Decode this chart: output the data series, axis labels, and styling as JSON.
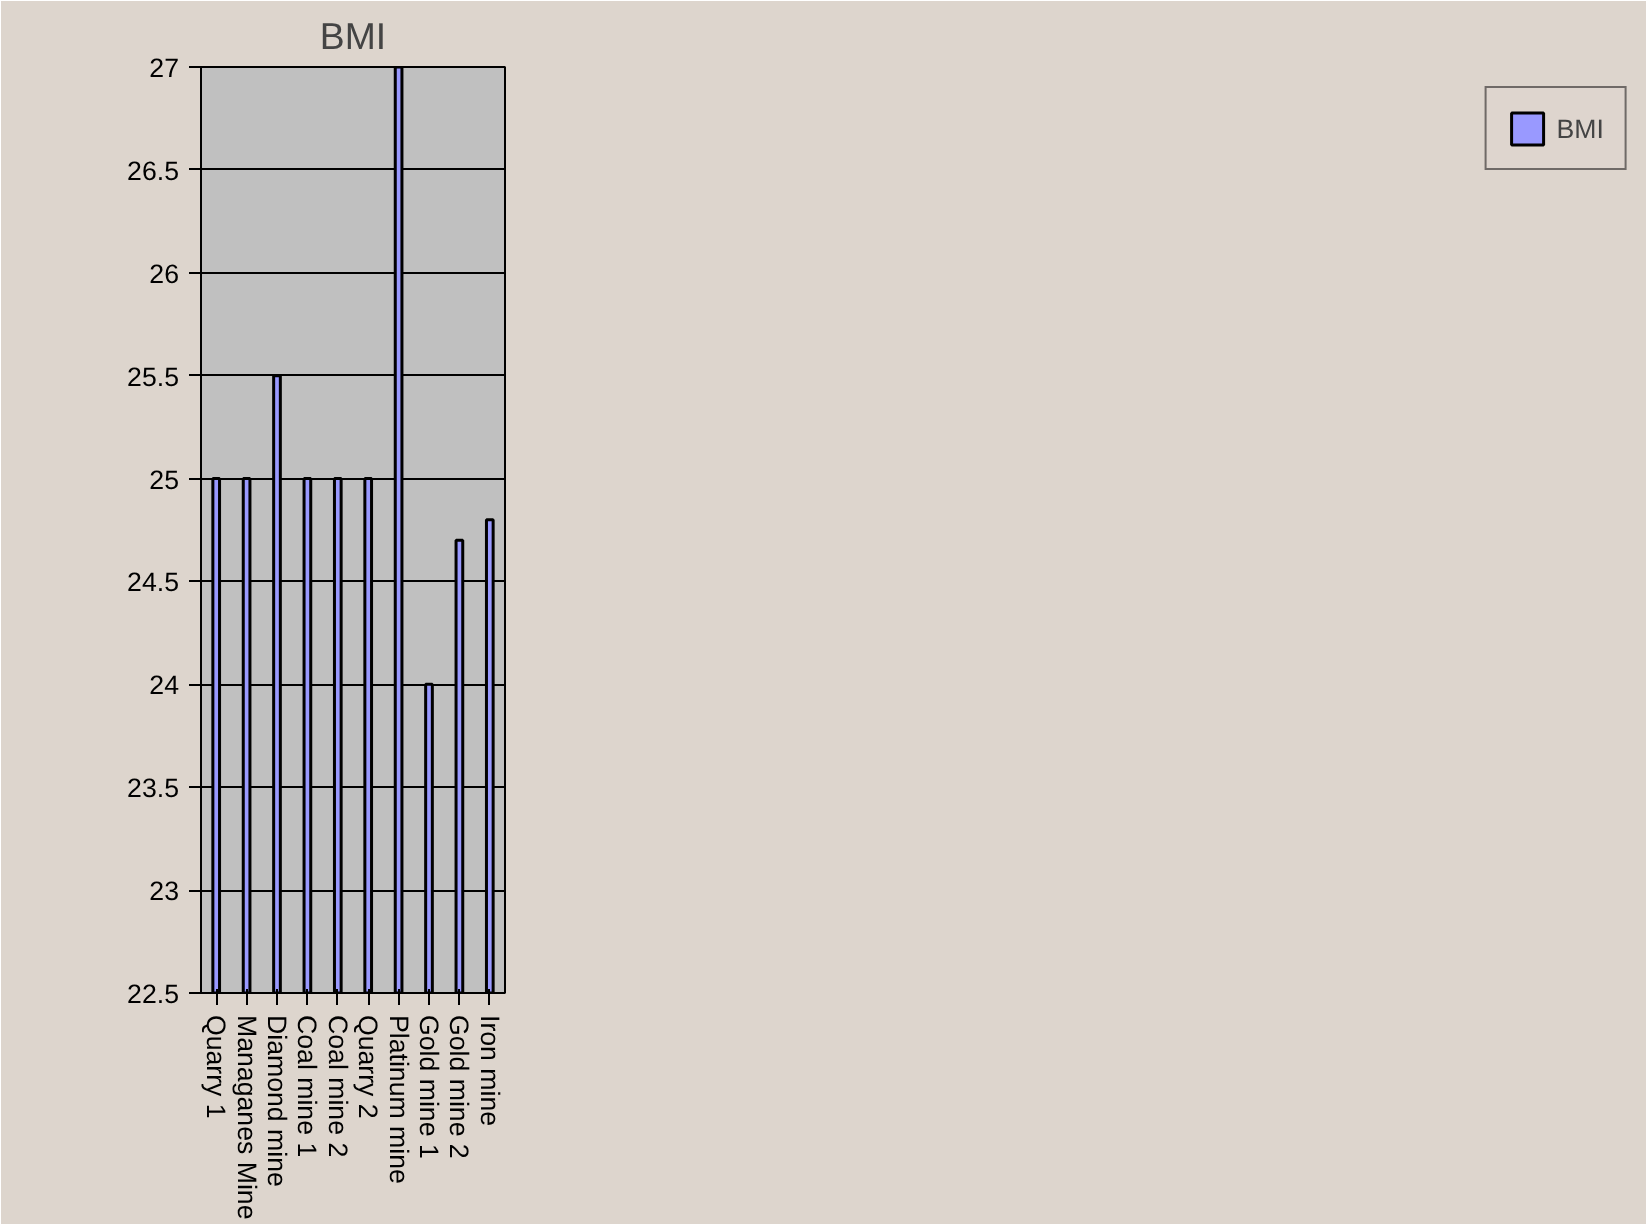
{
  "chart_data": {
    "type": "bar",
    "title": "BMI",
    "categories": [
      "Quarry 1",
      "Managanes Mine",
      "Diamond mine",
      "Coal mine 1",
      "Coal mine 2",
      "Quarry 2",
      "Platinum mine",
      "Gold mine 1",
      "Gold mine 2",
      "Iron mine"
    ],
    "series": [
      {
        "name": "BMI",
        "color": "#9999ff",
        "values": [
          25,
          25,
          25.5,
          25,
          25,
          25,
          27,
          24,
          24.7,
          24.8
        ]
      }
    ],
    "ylim": [
      22.5,
      27
    ],
    "yticks": [
      22.5,
      23,
      23.5,
      24,
      24.5,
      25,
      25.5,
      26,
      26.5,
      27
    ],
    "grid": "y",
    "legend": "right"
  }
}
